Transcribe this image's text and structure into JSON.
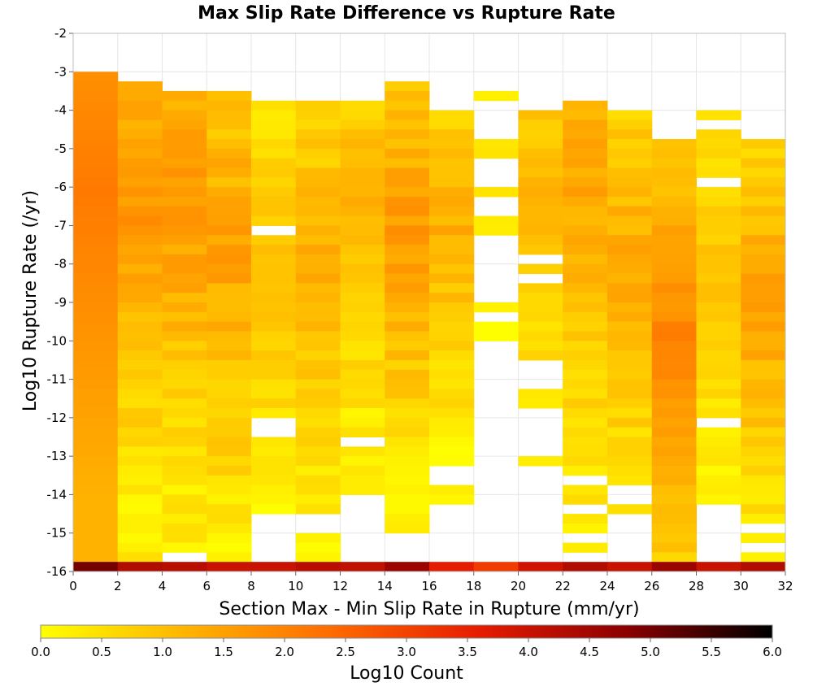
{
  "chart_data": {
    "type": "heatmap",
    "title": "Max Slip Rate Difference vs Rupture Rate",
    "xlabel": "Section Max - Min Slip Rate in Rupture (mm/yr)",
    "ylabel": "Log10 Rupture Rate (/yr)",
    "xlim": [
      0,
      32
    ],
    "ylim": [
      -16,
      -2
    ],
    "x_ticks": [
      "0",
      "2",
      "4",
      "6",
      "8",
      "10",
      "12",
      "14",
      "16",
      "18",
      "20",
      "22",
      "24",
      "26",
      "28",
      "30",
      "32"
    ],
    "y_ticks": [
      "-2",
      "-3",
      "-4",
      "-5",
      "-6",
      "-7",
      "-8",
      "-9",
      "-10",
      "-11",
      "-12",
      "-13",
      "-14",
      "-15",
      "-16"
    ],
    "grid": true,
    "x_bin_width": 2,
    "y_bin_height": 0.25,
    "colorbar": {
      "label": "Log10 Count",
      "range": [
        0,
        6
      ],
      "ticks": [
        "0.0",
        "0.5",
        "1.0",
        "1.5",
        "2.0",
        "2.5",
        "3.0",
        "3.5",
        "4.0",
        "4.5",
        "5.0",
        "5.5",
        "6.0"
      ],
      "colormap": [
        "#ffff00",
        "#ffb300",
        "#ff6a00",
        "#e51c00",
        "#8c0000",
        "#000000"
      ],
      "placement": "bottom"
    },
    "columns": [
      {
        "x_start": 0,
        "y_top": -3.0,
        "y_bottom": -16,
        "peak": 2.15,
        "peak_y": -6.0,
        "edge": 1.2,
        "skew": 0.0
      },
      {
        "x_start": 2,
        "y_top": -3.25,
        "y_bottom": -16,
        "peak": 1.75,
        "peak_y": -6.0,
        "edge": 0.3,
        "skew": 0.15
      },
      {
        "x_start": 4,
        "y_top": -3.5,
        "y_bottom": -16,
        "peak": 1.75,
        "peak_y": -6.0,
        "edge": 0.3,
        "skew": 0.15
      },
      {
        "x_start": 6,
        "y_top": -3.5,
        "y_bottom": -16,
        "peak": 1.55,
        "peak_y": -7.5,
        "edge": 0.2,
        "skew": 0.2
      },
      {
        "x_start": 8,
        "y_top": -3.75,
        "y_bottom": -14.5,
        "peak": 1.05,
        "peak_y": -8.0,
        "edge": 0.1,
        "skew": 0.2
      },
      {
        "x_start": 10,
        "y_top": -3.75,
        "y_bottom": -16,
        "peak": 1.3,
        "peak_y": -8.0,
        "edge": 0.1,
        "skew": 0.2
      },
      {
        "x_start": 12,
        "y_top": -3.75,
        "y_bottom": -14.0,
        "peak": 1.2,
        "peak_y": -6.5,
        "edge": 0.2,
        "skew": 0.2
      },
      {
        "x_start": 14,
        "y_top": -3.25,
        "y_bottom": -15.0,
        "peak": 1.65,
        "peak_y": -7.0,
        "edge": 0.1,
        "skew": 0.15
      },
      {
        "x_start": 16,
        "y_top": -4.0,
        "y_bottom": -14.25,
        "peak": 1.3,
        "peak_y": -7.0,
        "edge": 0.1,
        "skew": 0.2
      },
      {
        "x_start": 18,
        "y_top": -3.5,
        "y_bottom": -10.0,
        "peak": 0.5,
        "peak_y": -6.0,
        "edge": 0.0,
        "skew": 0.25
      },
      {
        "x_start": 20,
        "y_top": -4.0,
        "y_bottom": -13.25,
        "peak": 1.2,
        "peak_y": -6.0,
        "edge": 0.2,
        "skew": 0.2
      },
      {
        "x_start": 22,
        "y_top": -3.75,
        "y_bottom": -15.5,
        "peak": 1.45,
        "peak_y": -6.0,
        "edge": 0.3,
        "skew": 0.2
      },
      {
        "x_start": 24,
        "y_top": -4.0,
        "y_bottom": -14.5,
        "peak": 1.4,
        "peak_y": -8.0,
        "edge": 0.3,
        "skew": 0.2
      },
      {
        "x_start": 26,
        "y_top": -4.75,
        "y_bottom": -16,
        "peak": 2.05,
        "peak_y": -10.0,
        "edge": 0.4,
        "skew": 0.1
      },
      {
        "x_start": 28,
        "y_top": -4.0,
        "y_bottom": -14.25,
        "peak": 0.95,
        "peak_y": -8.0,
        "edge": 0.1,
        "skew": 0.2
      },
      {
        "x_start": 30,
        "y_top": -4.75,
        "y_bottom": -15.75,
        "peak": 1.45,
        "peak_y": -9.0,
        "edge": 0.2,
        "skew": 0.2
      }
    ],
    "empty_cells": [
      [
        4,
        -15.5
      ],
      [
        4,
        -15.75
      ],
      [
        8,
        -7.0
      ],
      [
        8,
        -12.0
      ],
      [
        8,
        -12.25
      ],
      [
        10,
        -14.5
      ],
      [
        10,
        -14.75
      ],
      [
        12,
        -12.5
      ],
      [
        16,
        -13.25
      ],
      [
        16,
        -13.5
      ],
      [
        18,
        -3.75
      ],
      [
        18,
        -4.0
      ],
      [
        18,
        -4.25
      ],
      [
        18,
        -4.5
      ],
      [
        18,
        -5.25
      ],
      [
        18,
        -5.5
      ],
      [
        18,
        -5.75
      ],
      [
        18,
        -6.25
      ],
      [
        18,
        -6.5
      ],
      [
        18,
        -7.25
      ],
      [
        18,
        -7.5
      ],
      [
        18,
        -7.75
      ],
      [
        18,
        -8.0
      ],
      [
        18,
        -8.25
      ],
      [
        18,
        -8.5
      ],
      [
        18,
        -8.75
      ],
      [
        18,
        -9.25
      ],
      [
        20,
        -7.75
      ],
      [
        20,
        -8.25
      ],
      [
        20,
        -10.5
      ],
      [
        20,
        -10.75
      ],
      [
        20,
        -11.0
      ],
      [
        20,
        -11.75
      ],
      [
        20,
        -12.0
      ],
      [
        20,
        -12.25
      ],
      [
        20,
        -12.5
      ],
      [
        20,
        -12.75
      ],
      [
        22,
        -13.5
      ],
      [
        22,
        -14.25
      ],
      [
        22,
        -15.0
      ],
      [
        24,
        -13.75
      ],
      [
        24,
        -14.0
      ],
      [
        28,
        -4.25
      ],
      [
        28,
        -5.75
      ],
      [
        28,
        -12.0
      ],
      [
        30,
        -14.75
      ],
      [
        30,
        -15.25
      ]
    ],
    "bottom_row": {
      "y": -16,
      "values": [
        5.0,
        4.3,
        4.2,
        4.0,
        4.0,
        4.2,
        4.1,
        4.6,
        3.6,
        3.1,
        3.9,
        4.3,
        4.0,
        4.6,
        4.0,
        4.3
      ]
    }
  }
}
